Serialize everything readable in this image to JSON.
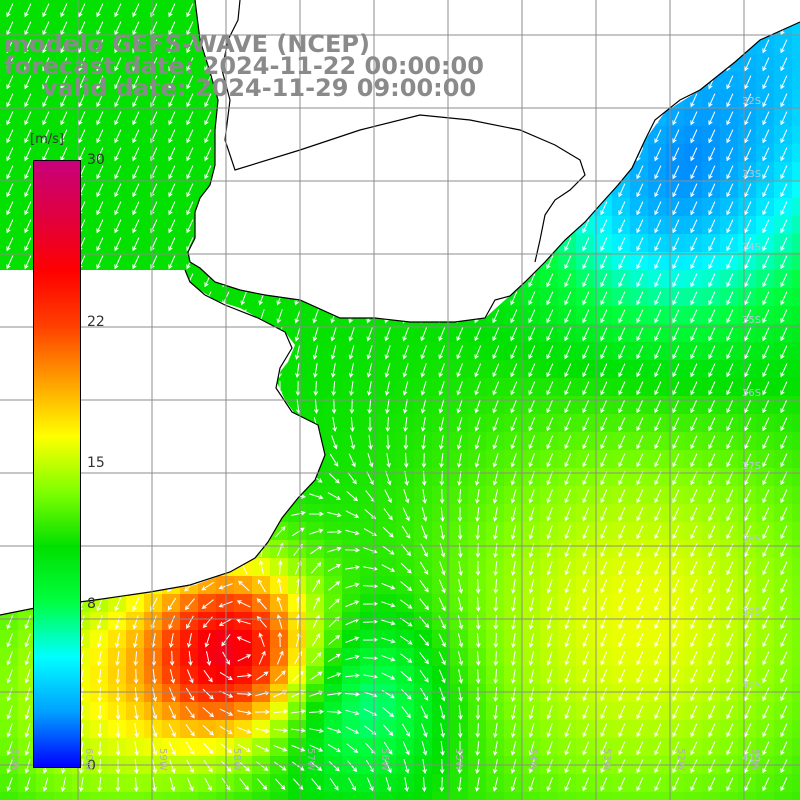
{
  "title": {
    "line1": "modelo GEFS-WAVE (NCEP)",
    "line2": "forecast date: 2024-11-22 00:00:00",
    "line3": "valid date: 2024-11-29 09:00:00"
  },
  "colorbar": {
    "unit": "[m/s]",
    "ticks": [
      "30",
      "22",
      "15",
      "8",
      "0"
    ],
    "tick_values": [
      30,
      22,
      15,
      8,
      0
    ],
    "range": [
      0,
      30
    ],
    "gradient": [
      "#0000ff",
      "#00a0ff",
      "#00ffff",
      "#00ff40",
      "#00e000",
      "#80ff00",
      "#ffff00",
      "#ffa000",
      "#ff4000",
      "#ff0000",
      "#e00040",
      "#c8007a"
    ]
  },
  "map_axes": {
    "lat_labels": [
      "32S",
      "33S",
      "34S",
      "35S",
      "36S",
      "37S",
      "38S",
      "39S",
      "40S",
      "41S"
    ],
    "lon_labels": [
      "61W",
      "60W",
      "59W",
      "58W",
      "57W",
      "56W",
      "55W",
      "54W",
      "53W",
      "52W",
      "51W"
    ]
  },
  "colors": {
    "land": "#ffffff",
    "coast": "#000000",
    "grid": "#8c8c8c",
    "arrow": "#ffffff",
    "title_text": "#8a8a8a"
  }
}
